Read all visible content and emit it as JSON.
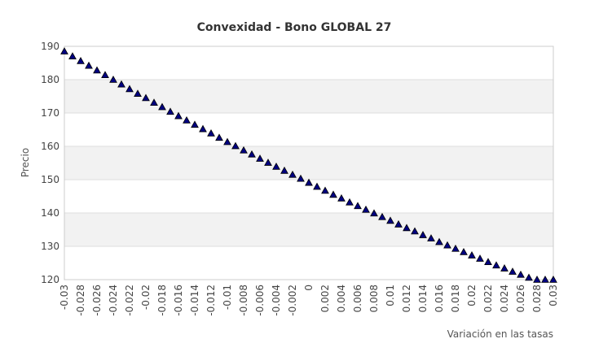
{
  "chart_data": {
    "type": "scatter",
    "title": "Convexidad - Bono GLOBAL 27",
    "xlabel": "Variación en las tasas",
    "ylabel": "Precio",
    "xlim": [
      -0.03,
      0.03
    ],
    "ylim": [
      120,
      190
    ],
    "x_ticks": [
      -0.03,
      -0.028,
      -0.026,
      -0.024,
      -0.022,
      -0.02,
      -0.018,
      -0.016,
      -0.014,
      -0.012,
      -0.01,
      -0.008,
      -0.006,
      -0.004,
      -0.002,
      0,
      0.002,
      0.004,
      0.006,
      0.008,
      0.01,
      0.012,
      0.014,
      0.016,
      0.018,
      0.02,
      0.022,
      0.024,
      0.026,
      0.028,
      0.03
    ],
    "y_ticks": [
      120,
      130,
      140,
      150,
      160,
      170,
      180,
      190
    ],
    "grid": "horizontal",
    "band_fill": "#f2f2f2",
    "marker": "triangle",
    "marker_color": "#000080",
    "x": [
      -0.03,
      -0.029,
      -0.028,
      -0.027,
      -0.026,
      -0.025,
      -0.024,
      -0.023,
      -0.022,
      -0.021,
      -0.02,
      -0.019,
      -0.018,
      -0.017,
      -0.016,
      -0.015,
      -0.014,
      -0.013,
      -0.012,
      -0.011,
      -0.01,
      -0.009,
      -0.008,
      -0.007,
      -0.006,
      -0.005,
      -0.004,
      -0.003,
      -0.002,
      -0.001,
      0,
      0.001,
      0.002,
      0.003,
      0.004,
      0.005,
      0.006,
      0.007,
      0.008,
      0.009,
      0.01,
      0.011,
      0.012,
      0.013,
      0.014,
      0.015,
      0.016,
      0.017,
      0.018,
      0.019,
      0.02,
      0.021,
      0.022,
      0.023,
      0.024,
      0.025,
      0.026,
      0.027,
      0.028,
      0.029,
      0.03
    ],
    "values": [
      188.5,
      187.0,
      185.6,
      184.2,
      182.8,
      181.4,
      180.0,
      178.6,
      177.2,
      175.8,
      174.5,
      173.1,
      171.8,
      170.4,
      169.1,
      167.8,
      166.5,
      165.2,
      163.9,
      162.6,
      161.3,
      160.1,
      158.8,
      157.6,
      156.3,
      155.1,
      153.9,
      152.7,
      151.5,
      150.3,
      149.1,
      147.9,
      146.7,
      145.5,
      144.4,
      143.2,
      142.1,
      141.0,
      139.9,
      138.8,
      137.7,
      136.6,
      135.5,
      134.5,
      133.4,
      132.4,
      131.3,
      130.3,
      129.3,
      128.3,
      127.3,
      126.3,
      125.3,
      124.3,
      123.4,
      122.4,
      121.5,
      120.6,
      119.7,
      118.8,
      117.9
    ]
  }
}
